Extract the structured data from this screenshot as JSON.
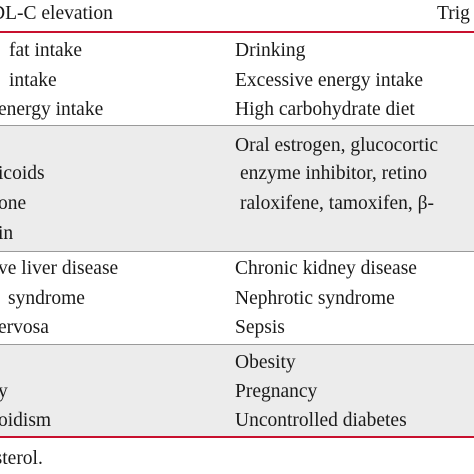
{
  "header": {
    "col1": "DL-C elevation",
    "col2": "Trig"
  },
  "groups": [
    {
      "left": [
        "fat intake",
        "intake",
        "energy intake"
      ],
      "right": [
        "Drinking",
        "Excessive energy intake",
        "High carbohydrate diet"
      ]
    },
    {
      "left": [
        "",
        "icoids",
        "one",
        "in"
      ],
      "right": [
        "Oral estrogen, glucocortic",
        "enzyme inhibitor, retino",
        "raloxifene, tamoxifen, β-"
      ]
    },
    {
      "left": [
        "ve liver disease",
        "syndrome",
        "ervosa"
      ],
      "right": [
        "Chronic kidney disease",
        "Nephrotic syndrome",
        "Sepsis"
      ]
    },
    {
      "left": [
        "",
        "y",
        "oidism"
      ],
      "right": [
        "Obesity",
        "Pregnancy",
        "Uncontrolled diabetes"
      ]
    }
  ],
  "footnote": "esterol."
}
